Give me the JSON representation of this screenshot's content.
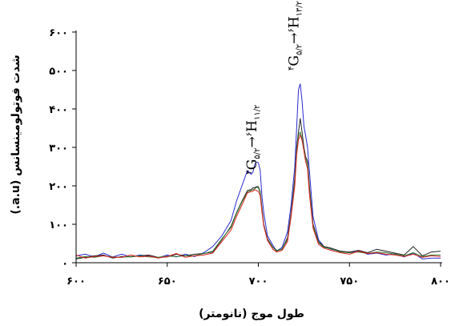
{
  "chart_data": {
    "type": "line",
    "xlabel": "طول موج (نانومتر)",
    "ylabel": "شدت فوتولومینسانس (a.u.)",
    "xlim": [
      600,
      800
    ],
    "ylim": [
      0,
      600
    ],
    "x_ticks": [
      600,
      650,
      700,
      750,
      800
    ],
    "x_tick_labels": [
      "۶۰۰",
      "۶۵۰",
      "۷۰۰",
      "۷۵۰",
      "۸۰۰"
    ],
    "y_ticks": [
      0,
      100,
      200,
      300,
      400,
      500,
      600
    ],
    "y_tick_labels": [
      "۰",
      "۱۰۰",
      "۲۰۰",
      "۳۰۰",
      "۴۰۰",
      "۵۰۰",
      "۶۰۰"
    ],
    "grid": false,
    "annotations": [
      {
        "lead": "۴",
        "g": "G",
        "gsub": "۵/۲",
        "arrow": "→",
        "sup": "۶",
        "h": "H",
        "hsub": "۱۱/۲",
        "x": 699,
        "y": 230
      },
      {
        "lead": "۴",
        "g": "G",
        "gsub": "۵/۲",
        "arrow": "→",
        "sup": "۶",
        "h": "H",
        "hsub": "۱۳/۲",
        "x": 722,
        "y": 500
      }
    ],
    "series": [
      {
        "color": "#2a2ad0",
        "x": [
          600,
          605,
          610,
          615,
          620,
          625,
          630,
          635,
          640,
          645,
          650,
          655,
          660,
          665,
          670,
          675,
          680,
          685,
          688,
          691,
          694,
          696,
          697,
          698,
          699,
          700,
          701,
          702,
          703,
          705,
          708,
          710,
          713,
          716,
          718,
          720,
          721,
          722,
          723,
          724,
          725,
          726,
          727,
          728,
          730,
          733,
          736,
          740,
          745,
          750,
          755,
          760,
          765,
          770,
          775,
          780,
          785,
          790,
          795,
          800
        ],
        "y": [
          18,
          22,
          15,
          25,
          15,
          22,
          15,
          20,
          17,
          13,
          20,
          15,
          22,
          16,
          26,
          42,
          70,
          110,
          160,
          200,
          240,
          230,
          235,
          255,
          262,
          260,
          240,
          170,
          130,
          70,
          45,
          30,
          40,
          80,
          150,
          250,
          350,
          450,
          465,
          420,
          355,
          330,
          300,
          240,
          120,
          60,
          42,
          35,
          30,
          26,
          32,
          22,
          25,
          20,
          23,
          15,
          25,
          10,
          12,
          12
        ]
      },
      {
        "color": "#222222",
        "x": [
          600,
          605,
          610,
          615,
          620,
          625,
          630,
          635,
          640,
          645,
          650,
          655,
          660,
          665,
          670,
          675,
          680,
          685,
          688,
          691,
          694,
          696,
          697,
          698,
          699,
          700,
          701,
          702,
          703,
          705,
          708,
          710,
          713,
          716,
          718,
          720,
          721,
          722,
          723,
          724,
          725,
          726,
          727,
          728,
          730,
          733,
          736,
          740,
          745,
          750,
          755,
          760,
          765,
          770,
          775,
          780,
          785,
          790,
          795,
          800
        ],
        "y": [
          10,
          14,
          18,
          20,
          12,
          16,
          15,
          18,
          20,
          14,
          15,
          22,
          18,
          22,
          24,
          28,
          60,
          95,
          130,
          160,
          188,
          190,
          195,
          195,
          198,
          198,
          185,
          140,
          100,
          62,
          40,
          32,
          35,
          65,
          130,
          220,
          300,
          340,
          375,
          340,
          300,
          275,
          265,
          200,
          100,
          55,
          42,
          38,
          30,
          28,
          32,
          26,
          35,
          30,
          25,
          20,
          42,
          18,
          28,
          30
        ]
      },
      {
        "color": "#2f7a2f",
        "x": [
          600,
          605,
          610,
          615,
          620,
          625,
          630,
          635,
          640,
          645,
          650,
          655,
          660,
          665,
          670,
          675,
          680,
          685,
          688,
          691,
          694,
          696,
          697,
          698,
          699,
          700,
          701,
          702,
          703,
          705,
          708,
          710,
          713,
          716,
          718,
          720,
          721,
          722,
          723,
          724,
          725,
          726,
          727,
          728,
          730,
          733,
          736,
          740,
          745,
          750,
          755,
          760,
          765,
          770,
          775,
          780,
          785,
          790,
          795,
          800
        ],
        "y": [
          12,
          16,
          14,
          18,
          15,
          14,
          16,
          18,
          15,
          14,
          17,
          16,
          18,
          18,
          24,
          30,
          62,
          92,
          128,
          158,
          184,
          188,
          190,
          192,
          196,
          195,
          182,
          136,
          98,
          60,
          40,
          30,
          36,
          60,
          125,
          210,
          290,
          330,
          340,
          322,
          295,
          270,
          255,
          190,
          95,
          52,
          40,
          36,
          28,
          26,
          28,
          24,
          28,
          26,
          22,
          18,
          26,
          16,
          20,
          20
        ]
      },
      {
        "color": "#e02020",
        "x": [
          600,
          605,
          610,
          615,
          620,
          625,
          630,
          635,
          640,
          645,
          650,
          655,
          660,
          665,
          670,
          675,
          680,
          685,
          688,
          691,
          694,
          696,
          697,
          698,
          699,
          700,
          701,
          702,
          703,
          705,
          708,
          710,
          713,
          716,
          718,
          720,
          721,
          722,
          723,
          724,
          725,
          726,
          727,
          728,
          730,
          733,
          736,
          740,
          745,
          750,
          755,
          760,
          765,
          770,
          775,
          780,
          785,
          790,
          795,
          800
        ],
        "y": [
          20,
          12,
          16,
          18,
          14,
          14,
          20,
          15,
          17,
          12,
          16,
          24,
          14,
          18,
          20,
          25,
          55,
          85,
          120,
          150,
          182,
          185,
          186,
          190,
          188,
          185,
          175,
          130,
          95,
          58,
          35,
          28,
          32,
          55,
          120,
          200,
          280,
          320,
          332,
          318,
          290,
          262,
          245,
          180,
          90,
          48,
          38,
          32,
          26,
          22,
          30,
          24,
          26,
          22,
          20,
          16,
          22,
          14,
          18,
          16
        ]
      }
    ]
  }
}
